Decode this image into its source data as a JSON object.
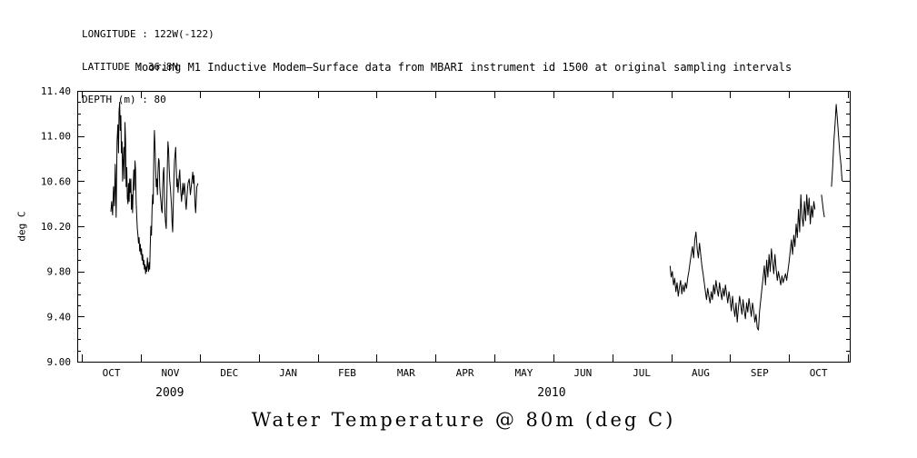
{
  "header": {
    "line1": "LONGITUDE : 122W(-122)",
    "line2": "LATITUDE : 36.8N",
    "line3": "DEPTH (m) : 80"
  },
  "plot_title": "Mooring M1 Inductive Modem—Surface data from MBARI instrument id 1500 at original sampling intervals",
  "bottom_title": "Water Temperature @ 80m (deg C)",
  "chart_data": {
    "type": "line",
    "title": "Mooring M1 Inductive Modem—Surface data from MBARI instrument id 1500 at original sampling intervals",
    "xlabel": "",
    "ylabel": "deg C",
    "ylim": [
      9.0,
      11.4
    ],
    "y_major_ticks": [
      {
        "value": 11.4,
        "label": "11.40"
      },
      {
        "value": 11.0,
        "label": "11.00"
      },
      {
        "value": 10.6,
        "label": "10.60"
      },
      {
        "value": 10.2,
        "label": "10.20"
      },
      {
        "value": 9.8,
        "label": "9.80"
      },
      {
        "value": 9.4,
        "label": "9.40"
      },
      {
        "value": 9.0,
        "label": "9.00"
      }
    ],
    "y_minor_step": 0.1,
    "xlim": [
      0,
      13.11
    ],
    "x_unit": "months since 2009-10-01",
    "x_tick_months": [
      0.08,
      1.08,
      2.08,
      3.08,
      4.08,
      5.08,
      6.08,
      7.08,
      8.08,
      9.08,
      10.08,
      11.08,
      12.08,
      13.08
    ],
    "x_labels": [
      {
        "label": "OCT",
        "t": 0.58
      },
      {
        "label": "NOV",
        "t": 1.58
      },
      {
        "label": "DEC",
        "t": 2.58
      },
      {
        "label": "JAN",
        "t": 3.58
      },
      {
        "label": "FEB",
        "t": 4.58
      },
      {
        "label": "MAR",
        "t": 5.58
      },
      {
        "label": "APR",
        "t": 6.58
      },
      {
        "label": "MAY",
        "t": 7.58
      },
      {
        "label": "JUN",
        "t": 8.58
      },
      {
        "label": "JUL",
        "t": 9.58
      },
      {
        "label": "AUG",
        "t": 10.58
      },
      {
        "label": "SEP",
        "t": 11.58
      },
      {
        "label": "OCT",
        "t": 12.58
      }
    ],
    "year_labels": [
      {
        "label": "2009",
        "t": 1.57
      },
      {
        "label": "2010",
        "t": 8.05
      }
    ],
    "line_color": "#000000",
    "background": "#ffffff",
    "legend": "none",
    "grid": false,
    "series_name": "water_temperature_80m_degC",
    "segments": [
      [
        [
          0.57,
          10.33
        ],
        [
          0.585,
          10.42
        ],
        [
          0.6,
          10.3
        ],
        [
          0.615,
          10.55
        ],
        [
          0.63,
          10.38
        ],
        [
          0.645,
          10.75
        ],
        [
          0.66,
          10.28
        ],
        [
          0.675,
          10.95
        ],
        [
          0.69,
          11.1
        ],
        [
          0.7,
          10.85
        ],
        [
          0.71,
          11.22
        ],
        [
          0.72,
          11.3
        ],
        [
          0.73,
          11.05
        ],
        [
          0.74,
          11.18
        ],
        [
          0.75,
          10.85
        ],
        [
          0.76,
          10.95
        ],
        [
          0.77,
          10.6
        ],
        [
          0.78,
          10.78
        ],
        [
          0.79,
          10.9
        ],
        [
          0.8,
          10.62
        ],
        [
          0.81,
          11.12
        ],
        [
          0.82,
          10.95
        ],
        [
          0.83,
          10.55
        ],
        [
          0.84,
          10.72
        ],
        [
          0.85,
          10.45
        ],
        [
          0.86,
          10.4
        ],
        [
          0.87,
          10.58
        ],
        [
          0.88,
          10.42
        ],
        [
          0.89,
          10.62
        ],
        [
          0.9,
          10.5
        ],
        [
          0.91,
          10.62
        ],
        [
          0.92,
          10.35
        ],
        [
          0.93,
          10.48
        ],
        [
          0.94,
          10.32
        ],
        [
          0.95,
          10.55
        ],
        [
          0.96,
          10.7
        ],
        [
          0.97,
          10.52
        ],
        [
          0.98,
          10.78
        ],
        [
          0.99,
          10.7
        ],
        [
          1.0,
          10.42
        ],
        [
          1.01,
          10.28
        ],
        [
          1.02,
          10.18
        ],
        [
          1.03,
          10.12
        ],
        [
          1.04,
          10.05
        ],
        [
          1.05,
          10.1
        ],
        [
          1.06,
          9.98
        ],
        [
          1.07,
          10.04
        ],
        [
          1.08,
          9.95
        ],
        [
          1.09,
          10.0
        ],
        [
          1.1,
          9.9
        ],
        [
          1.11,
          9.95
        ],
        [
          1.12,
          9.86
        ],
        [
          1.13,
          9.9
        ],
        [
          1.14,
          9.82
        ],
        [
          1.15,
          9.86
        ],
        [
          1.16,
          9.78
        ],
        [
          1.17,
          9.84
        ],
        [
          1.18,
          9.8
        ],
        [
          1.19,
          9.92
        ],
        [
          1.2,
          9.85
        ],
        [
          1.21,
          9.8
        ],
        [
          1.22,
          9.88
        ],
        [
          1.23,
          9.82
        ],
        [
          1.24,
          10.05
        ],
        [
          1.25,
          10.2
        ],
        [
          1.26,
          10.12
        ],
        [
          1.27,
          10.35
        ],
        [
          1.28,
          10.48
        ],
        [
          1.29,
          10.4
        ],
        [
          1.3,
          10.85
        ],
        [
          1.31,
          11.05
        ],
        [
          1.32,
          10.9
        ],
        [
          1.33,
          10.72
        ],
        [
          1.34,
          10.55
        ],
        [
          1.35,
          10.62
        ],
        [
          1.36,
          10.48
        ],
        [
          1.37,
          10.68
        ],
        [
          1.38,
          10.8
        ],
        [
          1.39,
          10.78
        ],
        [
          1.4,
          10.55
        ],
        [
          1.41,
          10.48
        ],
        [
          1.42,
          10.42
        ],
        [
          1.43,
          10.35
        ],
        [
          1.44,
          10.32
        ],
        [
          1.45,
          10.55
        ],
        [
          1.46,
          10.68
        ],
        [
          1.47,
          10.72
        ],
        [
          1.48,
          10.45
        ],
        [
          1.49,
          10.3
        ],
        [
          1.5,
          10.22
        ],
        [
          1.51,
          10.18
        ],
        [
          1.52,
          10.45
        ],
        [
          1.53,
          10.75
        ],
        [
          1.54,
          10.95
        ],
        [
          1.55,
          10.88
        ],
        [
          1.56,
          10.72
        ],
        [
          1.57,
          10.6
        ],
        [
          1.58,
          10.55
        ],
        [
          1.6,
          10.38
        ],
        [
          1.61,
          10.22
        ],
        [
          1.62,
          10.15
        ],
        [
          1.63,
          10.4
        ],
        [
          1.64,
          10.6
        ],
        [
          1.65,
          10.78
        ],
        [
          1.67,
          10.9
        ],
        [
          1.68,
          10.72
        ],
        [
          1.69,
          10.55
        ],
        [
          1.7,
          10.62
        ],
        [
          1.71,
          10.5
        ],
        [
          1.73,
          10.65
        ],
        [
          1.74,
          10.7
        ],
        [
          1.75,
          10.55
        ],
        [
          1.77,
          10.42
        ],
        [
          1.79,
          10.58
        ],
        [
          1.8,
          10.48
        ],
        [
          1.82,
          10.58
        ],
        [
          1.84,
          10.4
        ],
        [
          1.85,
          10.35
        ],
        [
          1.87,
          10.52
        ],
        [
          1.88,
          10.58
        ],
        [
          1.9,
          10.62
        ],
        [
          1.92,
          10.48
        ],
        [
          1.94,
          10.58
        ],
        [
          1.96,
          10.68
        ],
        [
          1.97,
          10.58
        ],
        [
          1.98,
          10.65
        ],
        [
          2.0,
          10.38
        ],
        [
          2.01,
          10.32
        ],
        [
          2.03,
          10.55
        ],
        [
          2.05,
          10.58
        ]
      ],
      [
        [
          10.06,
          9.85
        ],
        [
          10.08,
          9.75
        ],
        [
          10.1,
          9.8
        ],
        [
          10.12,
          9.68
        ],
        [
          10.14,
          9.74
        ],
        [
          10.16,
          9.62
        ],
        [
          10.18,
          9.7
        ],
        [
          10.2,
          9.58
        ],
        [
          10.22,
          9.66
        ],
        [
          10.24,
          9.72
        ],
        [
          10.26,
          9.6
        ],
        [
          10.28,
          9.68
        ],
        [
          10.3,
          9.62
        ],
        [
          10.32,
          9.7
        ],
        [
          10.34,
          9.65
        ],
        [
          10.36,
          9.74
        ],
        [
          10.38,
          9.8
        ],
        [
          10.4,
          9.88
        ],
        [
          10.42,
          9.95
        ],
        [
          10.44,
          10.02
        ],
        [
          10.46,
          9.92
        ],
        [
          10.48,
          10.08
        ],
        [
          10.5,
          10.15
        ],
        [
          10.52,
          10.0
        ],
        [
          10.54,
          9.92
        ],
        [
          10.56,
          10.05
        ],
        [
          10.58,
          9.95
        ],
        [
          10.6,
          9.85
        ],
        [
          10.62,
          9.78
        ],
        [
          10.64,
          9.7
        ],
        [
          10.66,
          9.62
        ],
        [
          10.68,
          9.55
        ],
        [
          10.7,
          9.65
        ],
        [
          10.72,
          9.58
        ],
        [
          10.74,
          9.52
        ],
        [
          10.76,
          9.62
        ],
        [
          10.78,
          9.55
        ],
        [
          10.8,
          9.68
        ],
        [
          10.82,
          9.6
        ],
        [
          10.84,
          9.72
        ],
        [
          10.86,
          9.64
        ],
        [
          10.88,
          9.58
        ],
        [
          10.9,
          9.7
        ],
        [
          10.92,
          9.62
        ],
        [
          10.94,
          9.55
        ],
        [
          10.96,
          9.65
        ],
        [
          10.98,
          9.58
        ],
        [
          11.0,
          9.68
        ],
        [
          11.02,
          9.6
        ],
        [
          11.04,
          9.52
        ],
        [
          11.06,
          9.62
        ],
        [
          11.08,
          9.55
        ],
        [
          11.1,
          9.45
        ],
        [
          11.12,
          9.58
        ],
        [
          11.14,
          9.48
        ],
        [
          11.16,
          9.4
        ],
        [
          11.18,
          9.52
        ],
        [
          11.2,
          9.35
        ],
        [
          11.22,
          9.48
        ],
        [
          11.24,
          9.58
        ],
        [
          11.26,
          9.5
        ],
        [
          11.28,
          9.42
        ],
        [
          11.3,
          9.55
        ],
        [
          11.32,
          9.45
        ],
        [
          11.34,
          9.38
        ],
        [
          11.36,
          9.52
        ],
        [
          11.38,
          9.44
        ],
        [
          11.4,
          9.56
        ],
        [
          11.42,
          9.48
        ],
        [
          11.44,
          9.4
        ],
        [
          11.46,
          9.52
        ],
        [
          11.48,
          9.45
        ],
        [
          11.5,
          9.35
        ],
        [
          11.52,
          9.42
        ],
        [
          11.54,
          9.3
        ],
        [
          11.56,
          9.28
        ],
        [
          11.58,
          9.45
        ],
        [
          11.6,
          9.55
        ],
        [
          11.62,
          9.65
        ],
        [
          11.64,
          9.75
        ],
        [
          11.66,
          9.85
        ],
        [
          11.68,
          9.68
        ],
        [
          11.7,
          9.9
        ],
        [
          11.72,
          9.75
        ],
        [
          11.74,
          9.95
        ],
        [
          11.76,
          9.8
        ],
        [
          11.78,
          10.0
        ],
        [
          11.8,
          9.88
        ],
        [
          11.82,
          9.78
        ],
        [
          11.84,
          9.95
        ],
        [
          11.86,
          9.82
        ],
        [
          11.88,
          9.72
        ],
        [
          11.9,
          9.8
        ],
        [
          11.92,
          9.74
        ],
        [
          11.94,
          9.68
        ],
        [
          11.96,
          9.76
        ],
        [
          11.98,
          9.7
        ],
        [
          12.0,
          9.74
        ],
        [
          12.02,
          9.78
        ],
        [
          12.04,
          9.72
        ],
        [
          12.06,
          9.8
        ],
        [
          12.08,
          9.88
        ],
        [
          12.1,
          9.98
        ],
        [
          12.12,
          10.08
        ],
        [
          12.14,
          9.95
        ],
        [
          12.16,
          10.12
        ],
        [
          12.18,
          10.02
        ],
        [
          12.2,
          10.22
        ],
        [
          12.22,
          10.1
        ],
        [
          12.24,
          10.35
        ],
        [
          12.26,
          10.15
        ],
        [
          12.28,
          10.48
        ],
        [
          12.3,
          10.28
        ],
        [
          12.32,
          10.2
        ],
        [
          12.34,
          10.42
        ],
        [
          12.36,
          10.25
        ],
        [
          12.38,
          10.48
        ],
        [
          12.4,
          10.3
        ],
        [
          12.42,
          10.45
        ],
        [
          12.44,
          10.22
        ],
        [
          12.46,
          10.38
        ],
        [
          12.48,
          10.28
        ],
        [
          12.5,
          10.42
        ],
        [
          12.52,
          10.35
        ]
      ],
      [
        [
          12.63,
          10.48
        ],
        [
          12.66,
          10.35
        ],
        [
          12.68,
          10.28
        ]
      ],
      [
        [
          12.8,
          10.55
        ],
        [
          12.82,
          10.72
        ],
        [
          12.84,
          10.95
        ],
        [
          12.86,
          11.1
        ],
        [
          12.88,
          11.28
        ],
        [
          12.9,
          11.15
        ],
        [
          12.92,
          11.0
        ],
        [
          12.94,
          10.85
        ],
        [
          12.96,
          10.75
        ],
        [
          12.98,
          10.6
        ]
      ]
    ]
  }
}
